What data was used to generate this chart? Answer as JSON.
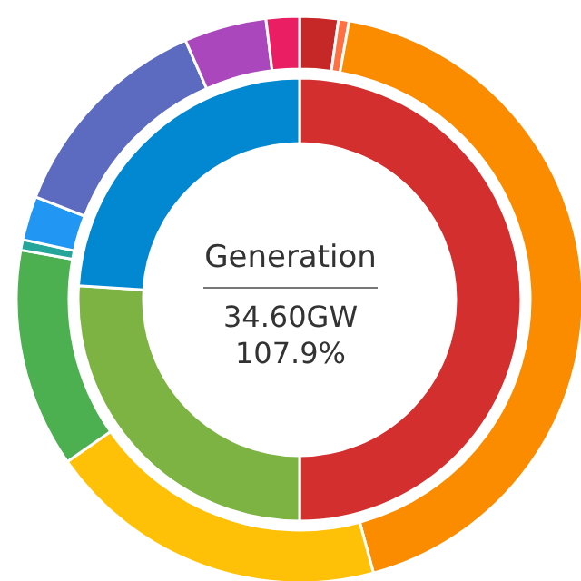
{
  "chart_data": {
    "type": "donut",
    "title": "Generation",
    "annotations": [
      "34.60GW",
      "107.9%"
    ],
    "series": [
      {
        "values": [
          50,
          26,
          24
        ],
        "colors": [
          "#d32f2f",
          "#7cb342",
          "#0288d1"
        ]
      },
      {
        "values": [
          2.2,
          0.6,
          43,
          19.5,
          12.5,
          0.6,
          2.5,
          12.5,
          4.7,
          1.9
        ],
        "colors": [
          "#c62828",
          "#ff7043",
          "#fb8c00",
          "#ffc107",
          "#4caf50",
          "#26a69a",
          "#2196f3",
          "#5c6bc0",
          "#ab47bc",
          "#e91e63"
        ]
      }
    ],
    "legend": false
  }
}
